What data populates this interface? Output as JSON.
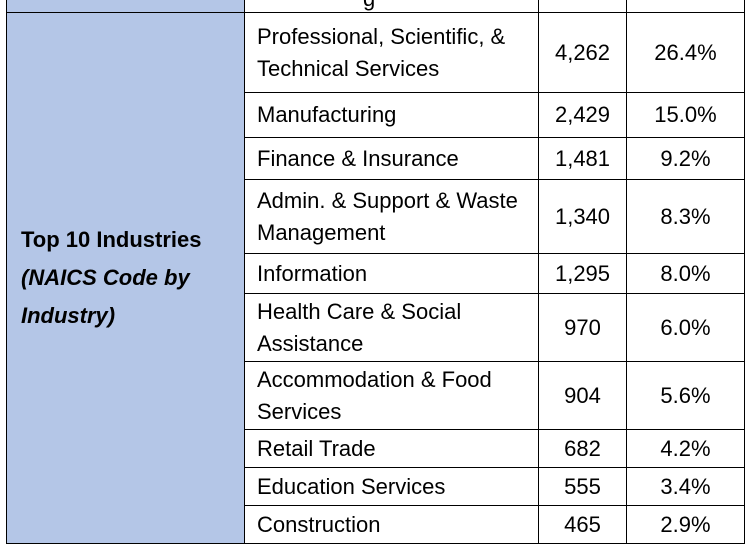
{
  "table": {
    "top_row": {
      "category": "",
      "industry": "g",
      "count": "",
      "percent": ""
    },
    "category_label": "Top 10 Industries",
    "category_sublabel": "(NAICS Code by Industry)",
    "rows": [
      {
        "industry": "Professional, Scientific, & Technical Services",
        "count": "4,262",
        "percent": "26.4%"
      },
      {
        "industry": "Manufacturing",
        "count": "2,429",
        "percent": "15.0%"
      },
      {
        "industry": "Finance & Insurance",
        "count": "1,481",
        "percent": "9.2%"
      },
      {
        "industry": "Admin. & Support & Waste Management",
        "count": "1,340",
        "percent": "8.3%"
      },
      {
        "industry": "Information",
        "count": "1,295",
        "percent": "8.0%"
      },
      {
        "industry": "Health Care & Social Assistance",
        "count": "970",
        "percent": "6.0%"
      },
      {
        "industry": "Accommodation & Food Services",
        "count": "904",
        "percent": "5.6%"
      },
      {
        "industry": "Retail Trade",
        "count": "682",
        "percent": "4.2%"
      },
      {
        "industry": "Education Services",
        "count": "555",
        "percent": "3.4%"
      },
      {
        "industry": "Construction",
        "count": "465",
        "percent": "2.9%"
      }
    ]
  },
  "colors": {
    "category_fill": "#b4c6e7",
    "border": "#000000"
  }
}
